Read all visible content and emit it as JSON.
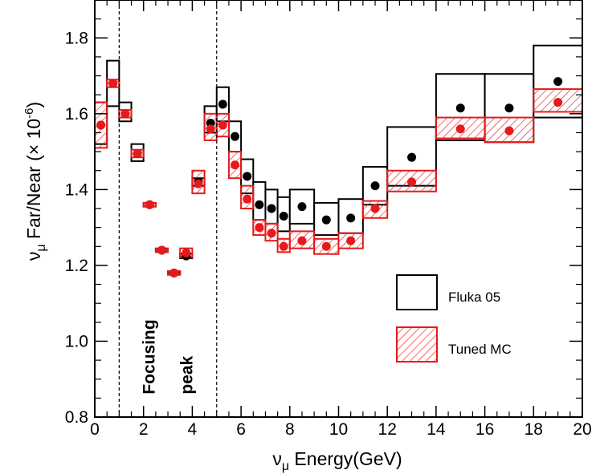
{
  "chart_data": {
    "type": "scatter",
    "title": "",
    "xlabel_prefix": "ν",
    "xlabel_sub": "μ",
    "xlabel_rest": " Energy(GeV)",
    "ylabel_prefix": "ν",
    "ylabel_sub": "μ",
    "ylabel_rest": " Far/Near (× 10",
    "ylabel_sup": "-6",
    "ylabel_close": ")",
    "xlim": [
      0,
      20
    ],
    "ylim": [
      0.8,
      1.9
    ],
    "x_ticks": [
      0,
      2,
      4,
      6,
      8,
      10,
      12,
      14,
      16,
      18,
      20
    ],
    "x_tick_labels": [
      "0",
      "2",
      "4",
      "6",
      "8",
      "10",
      "12",
      "14",
      "16",
      "18",
      "20"
    ],
    "y_ticks": [
      0.8,
      1.0,
      1.2,
      1.4,
      1.6,
      1.8
    ],
    "y_tick_labels": [
      "0.8",
      "1.0",
      "1.2",
      "1.4",
      "1.6",
      "1.8"
    ],
    "annotations": [
      {
        "id": "focusing",
        "text": "Focusing",
        "x": 2.45,
        "y": 0.97
      },
      {
        "id": "peak",
        "text": "peak",
        "x": 4.0,
        "y": 0.97
      }
    ],
    "vlines": [
      1.0,
      5.0
    ],
    "legend": [
      {
        "label": "Fluka 05",
        "color": "#000000",
        "style": "box"
      },
      {
        "label": "Tuned MC",
        "color": "#e8191a",
        "style": "hatched"
      }
    ],
    "legend_position": "right",
    "series": [
      {
        "name": "Fluka 05",
        "color": "#000000",
        "points": [
          {
            "xlo": 0.0,
            "xhi": 0.5,
            "y": 1.57,
            "lo": 1.52,
            "hi": 1.63
          },
          {
            "xlo": 0.5,
            "xhi": 1.0,
            "y": 1.68,
            "lo": 1.62,
            "hi": 1.74
          },
          {
            "xlo": 1.0,
            "xhi": 1.5,
            "y": 1.6,
            "lo": 1.58,
            "hi": 1.63
          },
          {
            "xlo": 1.5,
            "xhi": 2.0,
            "y": 1.495,
            "lo": 1.475,
            "hi": 1.52
          },
          {
            "xlo": 2.0,
            "xhi": 2.5,
            "y": 1.36,
            "lo": 1.355,
            "hi": 1.365
          },
          {
            "xlo": 2.5,
            "xhi": 3.0,
            "y": 1.24,
            "lo": 1.237,
            "hi": 1.243
          },
          {
            "xlo": 3.0,
            "xhi": 3.5,
            "y": 1.18,
            "lo": 1.177,
            "hi": 1.183
          },
          {
            "xlo": 3.5,
            "xhi": 4.0,
            "y": 1.225,
            "lo": 1.219,
            "hi": 1.231
          },
          {
            "xlo": 4.0,
            "xhi": 4.5,
            "y": 1.42,
            "lo": 1.41,
            "hi": 1.43
          },
          {
            "xlo": 4.5,
            "xhi": 5.0,
            "y": 1.575,
            "lo": 1.55,
            "hi": 1.62
          },
          {
            "xlo": 5.0,
            "xhi": 5.5,
            "y": 1.625,
            "lo": 1.58,
            "hi": 1.67
          },
          {
            "xlo": 5.5,
            "xhi": 6.0,
            "y": 1.54,
            "lo": 1.5,
            "hi": 1.58
          },
          {
            "xlo": 6.0,
            "xhi": 6.5,
            "y": 1.435,
            "lo": 1.39,
            "hi": 1.48
          },
          {
            "xlo": 6.5,
            "xhi": 7.0,
            "y": 1.36,
            "lo": 1.32,
            "hi": 1.42
          },
          {
            "xlo": 7.0,
            "xhi": 7.5,
            "y": 1.35,
            "lo": 1.31,
            "hi": 1.4
          },
          {
            "xlo": 7.5,
            "xhi": 8.0,
            "y": 1.33,
            "lo": 1.29,
            "hi": 1.38
          },
          {
            "xlo": 8.0,
            "xhi": 9.0,
            "y": 1.355,
            "lo": 1.31,
            "hi": 1.4
          },
          {
            "xlo": 9.0,
            "xhi": 10.0,
            "y": 1.32,
            "lo": 1.28,
            "hi": 1.365
          },
          {
            "xlo": 10.0,
            "xhi": 11.0,
            "y": 1.325,
            "lo": 1.285,
            "hi": 1.375
          },
          {
            "xlo": 11.0,
            "xhi": 12.0,
            "y": 1.41,
            "lo": 1.36,
            "hi": 1.46
          },
          {
            "xlo": 12.0,
            "xhi": 14.0,
            "y": 1.485,
            "lo": 1.41,
            "hi": 1.565
          },
          {
            "xlo": 14.0,
            "xhi": 16.0,
            "y": 1.615,
            "lo": 1.53,
            "hi": 1.705
          },
          {
            "xlo": 16.0,
            "xhi": 18.0,
            "y": 1.615,
            "lo": 1.525,
            "hi": 1.705
          },
          {
            "xlo": 18.0,
            "xhi": 20.0,
            "y": 1.685,
            "lo": 1.59,
            "hi": 1.78
          }
        ]
      },
      {
        "name": "Tuned MC",
        "color": "#e8191a",
        "points": [
          {
            "xlo": 0.0,
            "xhi": 0.5,
            "y": 1.57,
            "lo": 1.51,
            "hi": 1.63
          },
          {
            "xlo": 0.5,
            "xhi": 1.0,
            "y": 1.68,
            "lo": 1.67,
            "hi": 1.69
          },
          {
            "xlo": 1.0,
            "xhi": 1.5,
            "y": 1.6,
            "lo": 1.59,
            "hi": 1.61
          },
          {
            "xlo": 1.5,
            "xhi": 2.0,
            "y": 1.495,
            "lo": 1.485,
            "hi": 1.505
          },
          {
            "xlo": 2.0,
            "xhi": 2.5,
            "y": 1.36,
            "lo": 1.355,
            "hi": 1.365
          },
          {
            "xlo": 2.5,
            "xhi": 3.0,
            "y": 1.24,
            "lo": 1.235,
            "hi": 1.245
          },
          {
            "xlo": 3.0,
            "xhi": 3.5,
            "y": 1.18,
            "lo": 1.175,
            "hi": 1.185
          },
          {
            "xlo": 3.5,
            "xhi": 4.0,
            "y": 1.233,
            "lo": 1.222,
            "hi": 1.245
          },
          {
            "xlo": 4.0,
            "xhi": 4.5,
            "y": 1.415,
            "lo": 1.39,
            "hi": 1.45
          },
          {
            "xlo": 4.5,
            "xhi": 5.0,
            "y": 1.56,
            "lo": 1.53,
            "hi": 1.6
          },
          {
            "xlo": 5.0,
            "xhi": 5.5,
            "y": 1.57,
            "lo": 1.54,
            "hi": 1.6
          },
          {
            "xlo": 5.5,
            "xhi": 6.0,
            "y": 1.465,
            "lo": 1.43,
            "hi": 1.5
          },
          {
            "xlo": 6.0,
            "xhi": 6.5,
            "y": 1.375,
            "lo": 1.35,
            "hi": 1.41
          },
          {
            "xlo": 6.5,
            "xhi": 7.0,
            "y": 1.3,
            "lo": 1.28,
            "hi": 1.32
          },
          {
            "xlo": 7.0,
            "xhi": 7.5,
            "y": 1.285,
            "lo": 1.265,
            "hi": 1.31
          },
          {
            "xlo": 7.5,
            "xhi": 8.0,
            "y": 1.25,
            "lo": 1.235,
            "hi": 1.27
          },
          {
            "xlo": 8.0,
            "xhi": 9.0,
            "y": 1.265,
            "lo": 1.245,
            "hi": 1.29
          },
          {
            "xlo": 9.0,
            "xhi": 10.0,
            "y": 1.25,
            "lo": 1.23,
            "hi": 1.27
          },
          {
            "xlo": 10.0,
            "xhi": 11.0,
            "y": 1.265,
            "lo": 1.245,
            "hi": 1.285
          },
          {
            "xlo": 11.0,
            "xhi": 12.0,
            "y": 1.35,
            "lo": 1.325,
            "hi": 1.37
          },
          {
            "xlo": 12.0,
            "xhi": 14.0,
            "y": 1.42,
            "lo": 1.395,
            "hi": 1.45
          },
          {
            "xlo": 14.0,
            "xhi": 16.0,
            "y": 1.56,
            "lo": 1.535,
            "hi": 1.59
          },
          {
            "xlo": 16.0,
            "xhi": 18.0,
            "y": 1.555,
            "lo": 1.525,
            "hi": 1.59
          },
          {
            "xlo": 18.0,
            "xhi": 20.0,
            "y": 1.63,
            "lo": 1.605,
            "hi": 1.665
          }
        ]
      }
    ]
  }
}
